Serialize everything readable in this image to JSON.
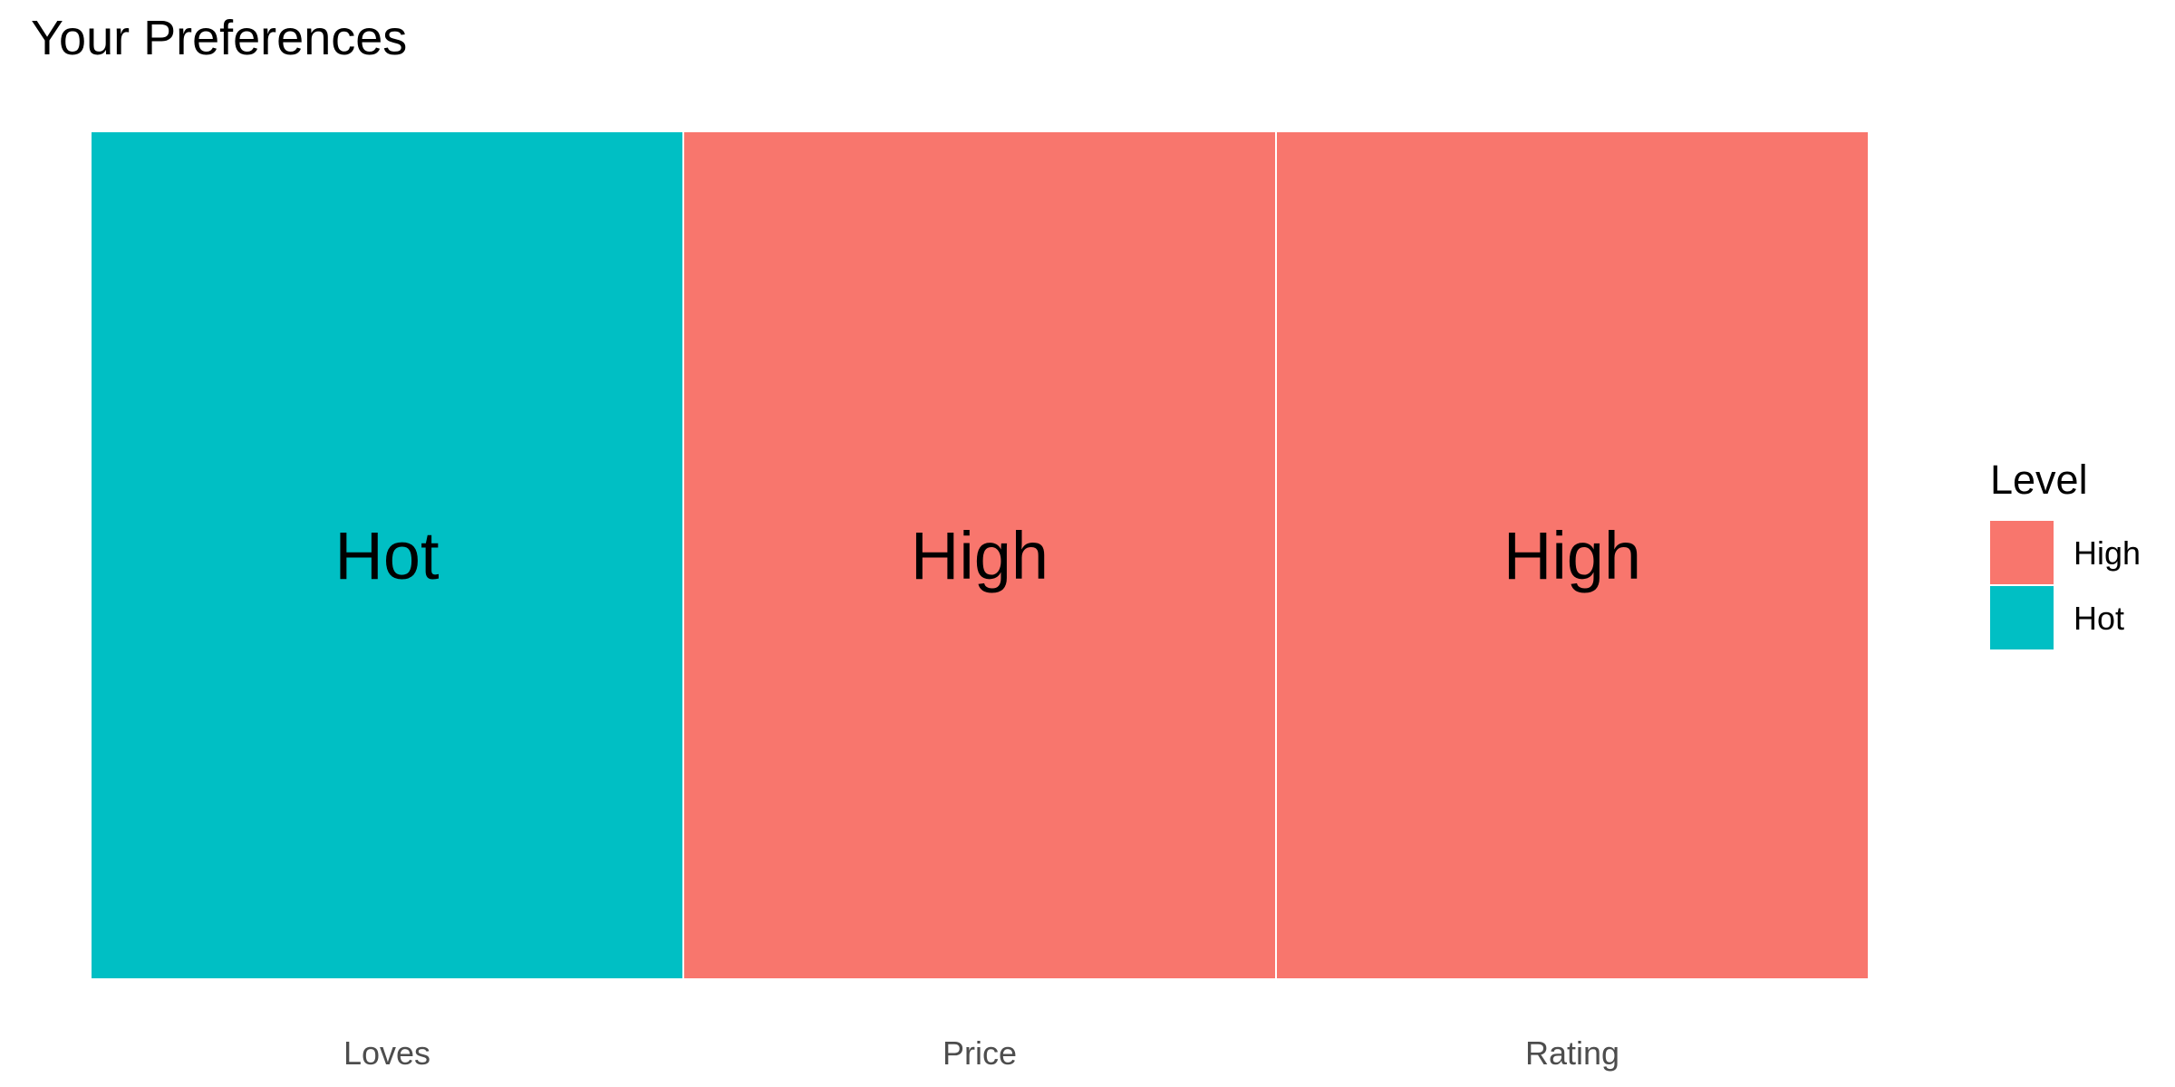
{
  "chart_data": {
    "type": "heatmap",
    "title": "Your Preferences",
    "xlabel": "",
    "ylabel": "",
    "grid": false,
    "categories": [
      "Loves",
      "Price",
      "Rating"
    ],
    "values": [
      "Hot",
      "High",
      "High"
    ],
    "legend": {
      "title": "Level",
      "placement": "right",
      "entries": [
        {
          "label": "High",
          "color": "#F8766D"
        },
        {
          "label": "Hot",
          "color": "#00BFC4"
        }
      ]
    }
  }
}
